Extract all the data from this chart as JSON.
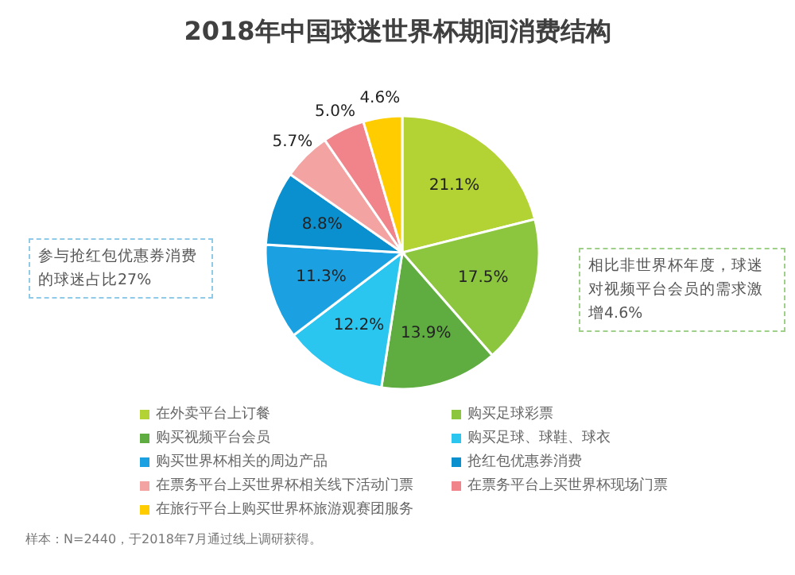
{
  "chart_data": {
    "type": "pie",
    "title": "2018年中国球迷世界杯期间消费结构",
    "categories": [
      "在外卖平台上订餐",
      "购买足球彩票",
      "购买视频平台会员",
      "购买足球、球鞋、球衣",
      "购买世界杯相关的周边产品",
      "抢红包优惠券消费",
      "在票务平台上买世界杯相关线下活动门票",
      "在票务平台上买世界杯现场门票",
      "在旅行平台上购买世界杯旅游观赛团服务"
    ],
    "values": [
      21.1,
      17.5,
      13.9,
      12.2,
      11.3,
      8.8,
      5.7,
      5.0,
      4.6
    ],
    "colors": [
      "#b3d234",
      "#8cc63f",
      "#5fad41",
      "#2ac6f0",
      "#1ba1e2",
      "#0a8fcf",
      "#f4a3a3",
      "#f0848a",
      "#ffcc00"
    ],
    "value_labels": [
      "21.1%",
      "17.5%",
      "13.9%",
      "12.2%",
      "11.3%",
      "8.8%",
      "5.7%",
      "5.0%",
      "4.6%"
    ],
    "legend": "bottom",
    "annotations": [
      "参与抢红包优惠券消费的球迷占比27%",
      "相比非世界杯年度，球迷对视频平台会员的需求激增4.6%",
      "样本：N=2440，于2018年7月通过线上调研获得。"
    ]
  }
}
